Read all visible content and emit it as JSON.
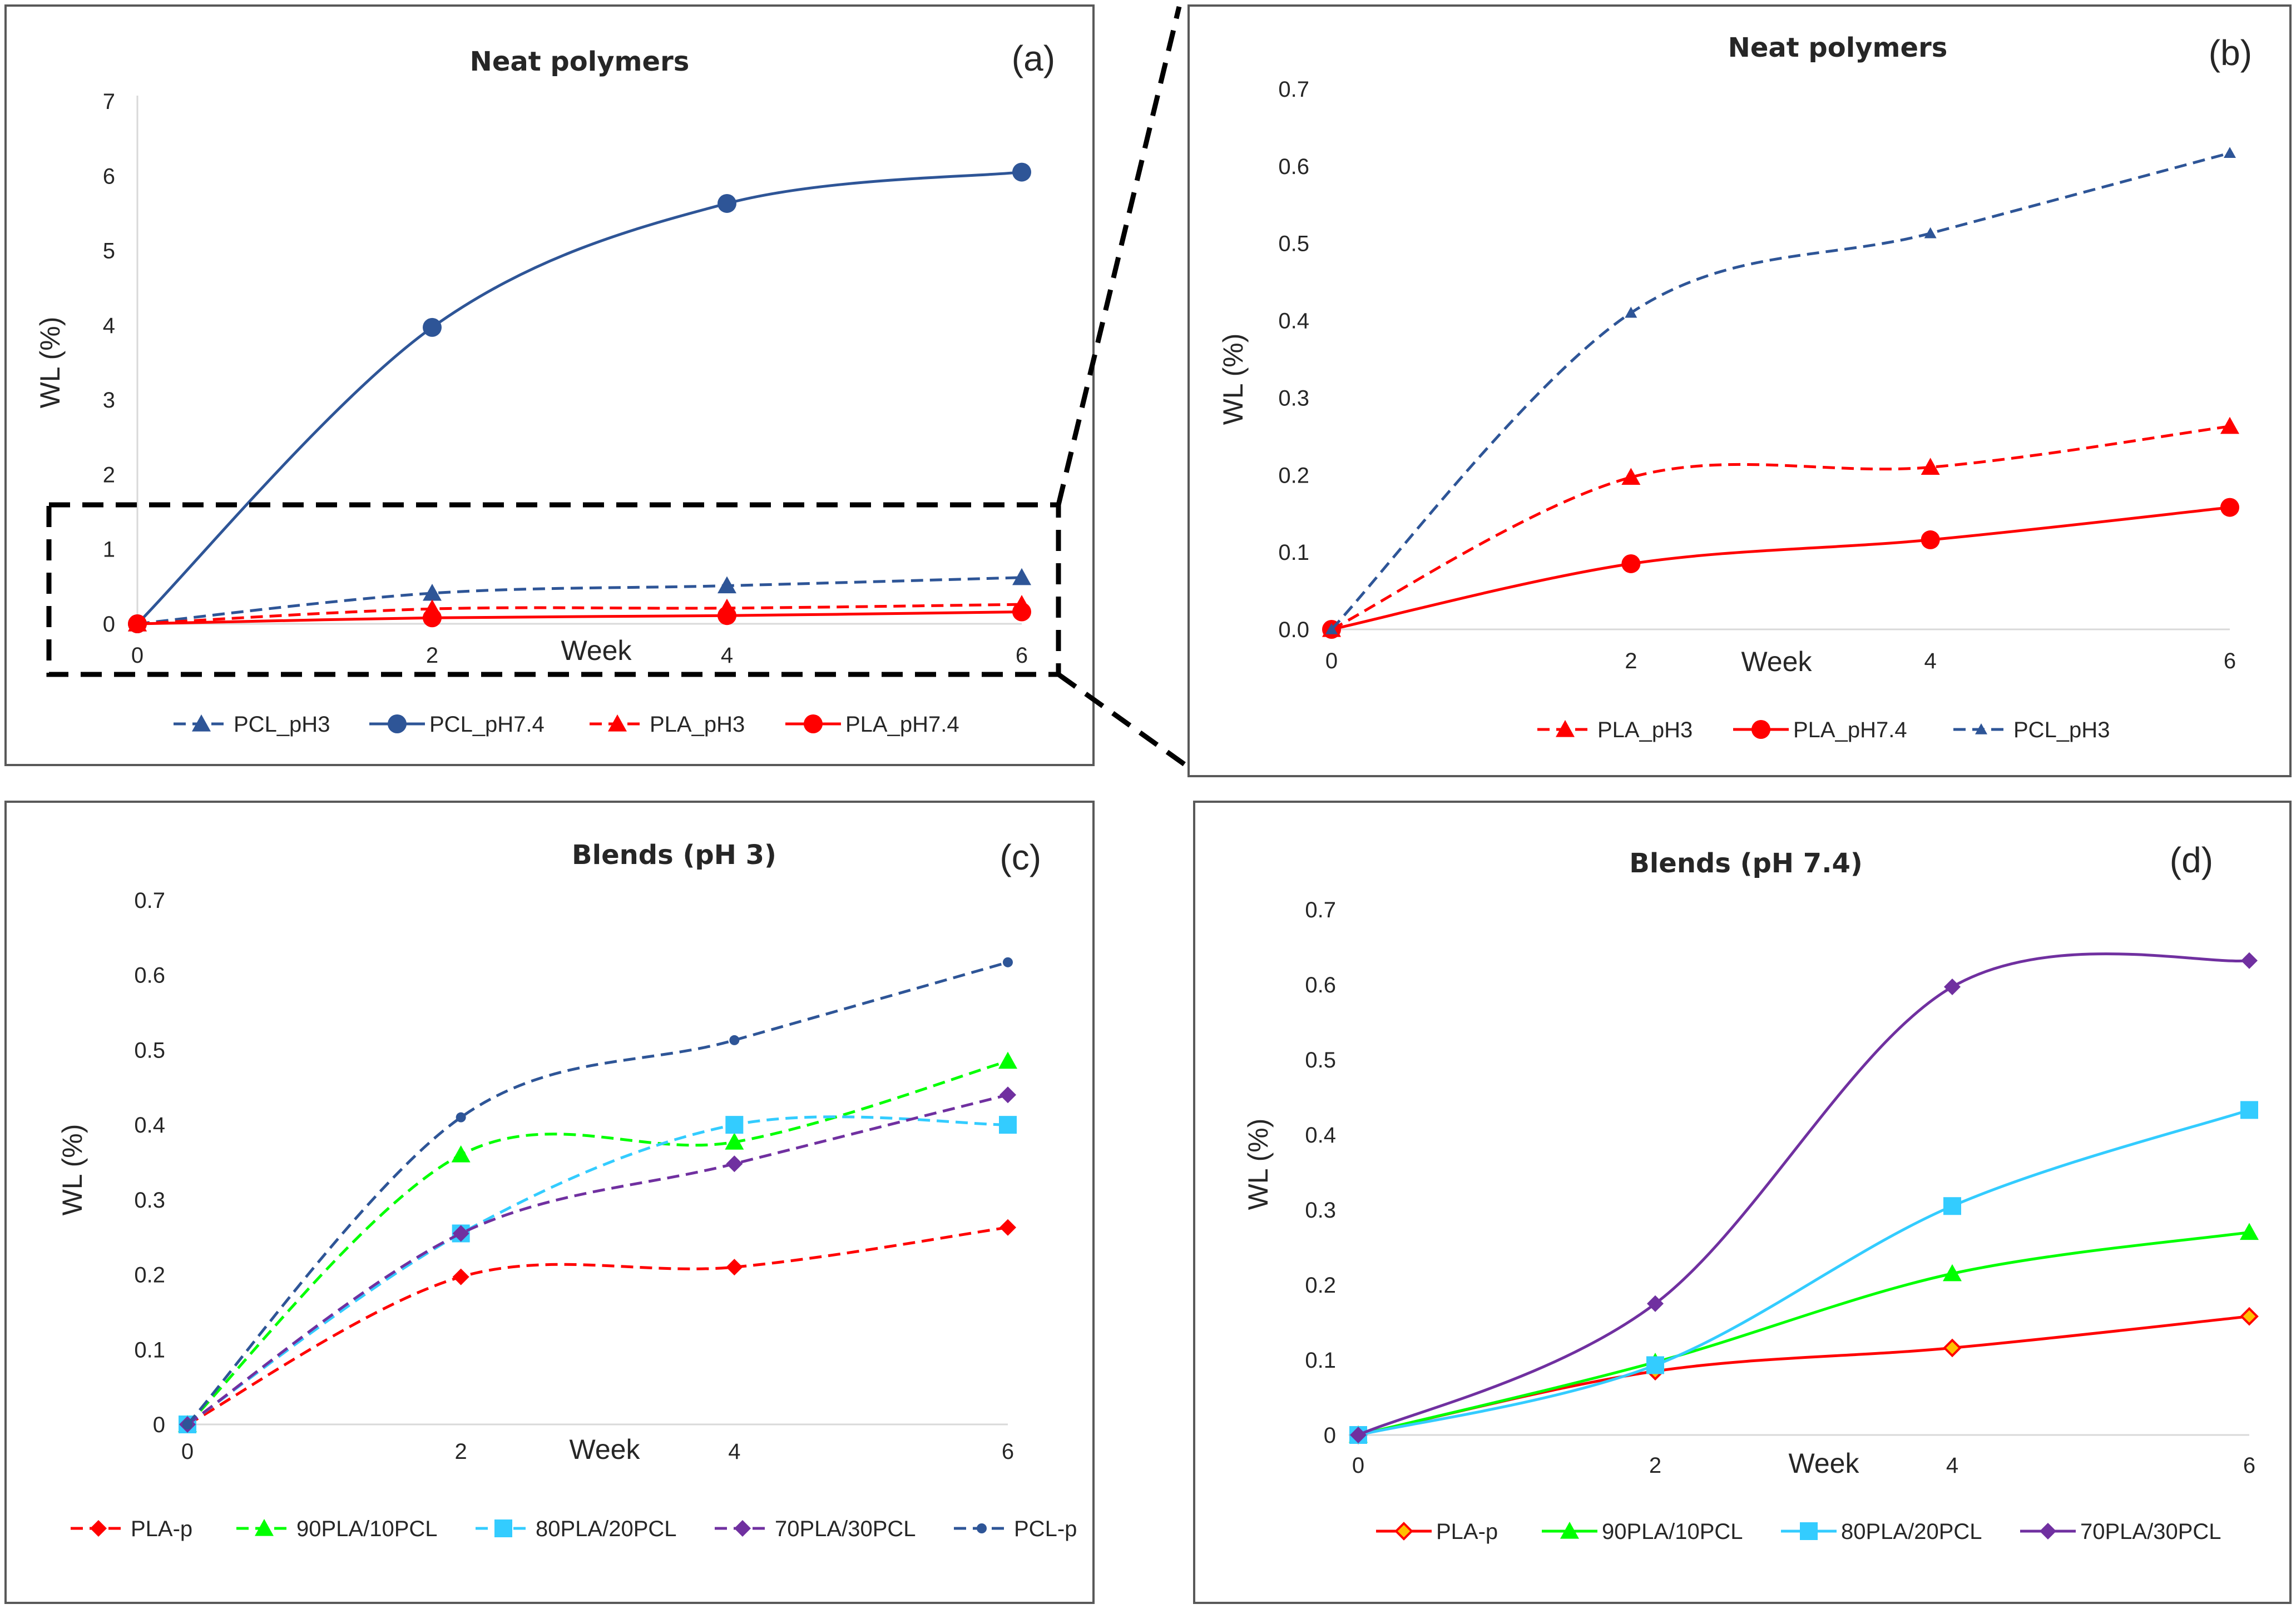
{
  "chart_data": [
    {
      "type": "line",
      "panel": "a",
      "panel_label": "(a)",
      "title": "Neat polymers",
      "xlabel": "Week",
      "ylabel": "WL (%)",
      "x": [
        0,
        2,
        4,
        6
      ],
      "xticks": [
        "0",
        "2",
        "4",
        "6"
      ],
      "yticks": [
        "0",
        "1",
        "2",
        "3",
        "4",
        "5",
        "6",
        "7"
      ],
      "ylim": [
        0,
        7
      ],
      "legend_position": "bottom",
      "series": [
        {
          "name": "PCL_pH3",
          "values": [
            0,
            0.41,
            0.51,
            0.62
          ],
          "color": "#2e5597",
          "dash": true,
          "marker": "triangle"
        },
        {
          "name": "PCL_pH7.4",
          "values": [
            0,
            3.97,
            5.63,
            6.05
          ],
          "color": "#2e5597",
          "dash": false,
          "marker": "circle"
        },
        {
          "name": "PLA_pH3",
          "values": [
            0,
            0.2,
            0.21,
            0.26
          ],
          "color": "#ff0000",
          "dash": true,
          "marker": "triangle"
        },
        {
          "name": "PLA_pH7.4",
          "values": [
            0,
            0.08,
            0.11,
            0.16
          ],
          "color": "#ff0000",
          "dash": false,
          "marker": "circle"
        }
      ]
    },
    {
      "type": "line",
      "panel": "b",
      "panel_label": "(b)",
      "title": "Neat polymers",
      "xlabel": "Week",
      "ylabel": "WL (%)",
      "x": [
        0,
        2,
        4,
        6
      ],
      "xticks": [
        "0",
        "2",
        "4",
        "6"
      ],
      "yticks": [
        "0.0",
        "0.1",
        "0.2",
        "0.3",
        "0.4",
        "0.5",
        "0.6",
        "0.7"
      ],
      "ylim": [
        0,
        0.7
      ],
      "legend_position": "bottom",
      "series": [
        {
          "name": "PLA_pH3",
          "values": [
            0,
            0.197,
            0.21,
            0.263
          ],
          "color": "#ff0000",
          "dash": true,
          "marker": "triangle"
        },
        {
          "name": "PLA_pH7.4",
          "values": [
            0,
            0.085,
            0.116,
            0.158
          ],
          "color": "#ff0000",
          "dash": false,
          "marker": "circle"
        },
        {
          "name": "PCL_pH3",
          "values": [
            0,
            0.41,
            0.513,
            0.617
          ],
          "color": "#2e5597",
          "dash": true,
          "marker": "triangle-small"
        }
      ]
    },
    {
      "type": "line",
      "panel": "c",
      "panel_label": "(c)",
      "title": "Blends (pH 3)",
      "xlabel": "Week",
      "ylabel": "WL (%)",
      "x": [
        0,
        2,
        4,
        6
      ],
      "xticks": [
        "0",
        "2",
        "4",
        "6"
      ],
      "yticks": [
        "0",
        "0.1",
        "0.2",
        "0.3",
        "0.4",
        "0.5",
        "0.6",
        "0.7"
      ],
      "ylim": [
        0,
        0.7
      ],
      "legend_position": "bottom",
      "series": [
        {
          "name": "PLA-p",
          "values": [
            0,
            0.197,
            0.21,
            0.263
          ],
          "color": "#ff0000",
          "dash": true,
          "marker": "diamond"
        },
        {
          "name": "90PLA/10PCL",
          "values": [
            0,
            0.36,
            0.377,
            0.485
          ],
          "color": "#00ff00",
          "dash": true,
          "marker": "triangle"
        },
        {
          "name": "80PLA/20PCL",
          "values": [
            0,
            0.255,
            0.4,
            0.4
          ],
          "color": "#33ccff",
          "dash": true,
          "marker": "square"
        },
        {
          "name": "70PLA/30PCL",
          "values": [
            0,
            0.255,
            0.348,
            0.44
          ],
          "color": "#7030a0",
          "dash": true,
          "marker": "diamond"
        },
        {
          "name": "PCL-p",
          "values": [
            0,
            0.41,
            0.513,
            0.617
          ],
          "color": "#2e5597",
          "dash": true,
          "marker": "dot"
        }
      ]
    },
    {
      "type": "line",
      "panel": "d",
      "panel_label": "(d)",
      "title": "Blends (pH 7.4)",
      "xlabel": "Week",
      "ylabel": "WL (%)",
      "x": [
        0,
        2,
        4,
        6
      ],
      "xticks": [
        "0",
        "2",
        "4",
        "6"
      ],
      "yticks": [
        "0",
        "0.1",
        "0.2",
        "0.3",
        "0.4",
        "0.5",
        "0.6",
        "0.7"
      ],
      "ylim": [
        0,
        0.7
      ],
      "legend_position": "bottom",
      "series": [
        {
          "name": "PLA-p",
          "values": [
            0,
            0.085,
            0.116,
            0.158
          ],
          "color": "#ff0000",
          "dash": false,
          "marker": "diamond-orange"
        },
        {
          "name": "90PLA/10PCL",
          "values": [
            0,
            0.097,
            0.215,
            0.27
          ],
          "color": "#00ff00",
          "dash": false,
          "marker": "triangle"
        },
        {
          "name": "80PLA/20PCL",
          "values": [
            0,
            0.093,
            0.305,
            0.433
          ],
          "color": "#33ccff",
          "dash": false,
          "marker": "square"
        },
        {
          "name": "70PLA/30PCL",
          "values": [
            0,
            0.175,
            0.597,
            0.632
          ],
          "color": "#7030a0",
          "dash": false,
          "marker": "diamond"
        }
      ]
    }
  ]
}
